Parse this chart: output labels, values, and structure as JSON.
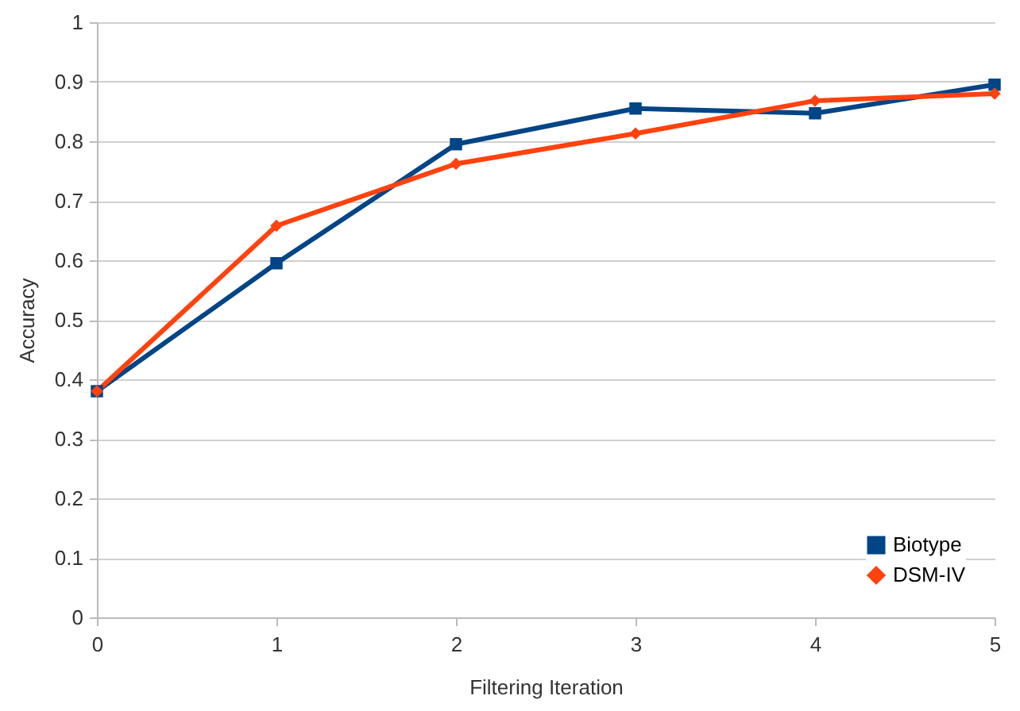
{
  "chart_data": {
    "type": "line",
    "xlabel": "Filtering Iteration",
    "ylabel": "Accuracy",
    "x": [
      0,
      1,
      2,
      3,
      4,
      5
    ],
    "xlim": [
      0,
      5
    ],
    "xticks": [
      0,
      1,
      2,
      3,
      4,
      5
    ],
    "ylim": [
      0,
      1
    ],
    "yticks": [
      0,
      0.1,
      0.2,
      0.3,
      0.4,
      0.5,
      0.6,
      0.7,
      0.8,
      0.9,
      1
    ],
    "grid": "y",
    "legend": "bottom right",
    "series": [
      {
        "name": "Biotype",
        "color": "#004586",
        "marker": "square",
        "values": [
          0.38,
          0.595,
          0.795,
          0.855,
          0.847,
          0.895
        ]
      },
      {
        "name": "DSM-IV",
        "color": "#ff420e",
        "marker": "diamond",
        "values": [
          0.38,
          0.658,
          0.762,
          0.813,
          0.868,
          0.88
        ]
      }
    ]
  }
}
